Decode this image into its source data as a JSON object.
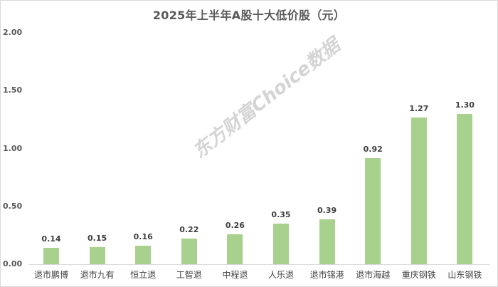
{
  "chart_data": {
    "type": "bar",
    "title": "2025年上半年A股十大低价股（元）",
    "xlabel": "",
    "ylabel": "",
    "ylim": [
      0,
      2.0
    ],
    "yticks": [
      "0.00",
      "0.50",
      "1.00",
      "1.50",
      "2.00"
    ],
    "grid": false,
    "legend": null,
    "categories": [
      "退市鹏博",
      "退市九有",
      "恒立退",
      "工智退",
      "中程退",
      "人乐退",
      "退市锦港",
      "退市海越",
      "重庆钢铁",
      "山东钢铁"
    ],
    "values": [
      0.14,
      0.15,
      0.16,
      0.22,
      0.26,
      0.35,
      0.39,
      0.92,
      1.27,
      1.3
    ],
    "value_labels": [
      "0.14",
      "0.15",
      "0.16",
      "0.22",
      "0.26",
      "0.35",
      "0.39",
      "0.92",
      "1.27",
      "1.30"
    ],
    "bar_color": "#a9d18e"
  },
  "watermark": "东方财富Choice数据"
}
